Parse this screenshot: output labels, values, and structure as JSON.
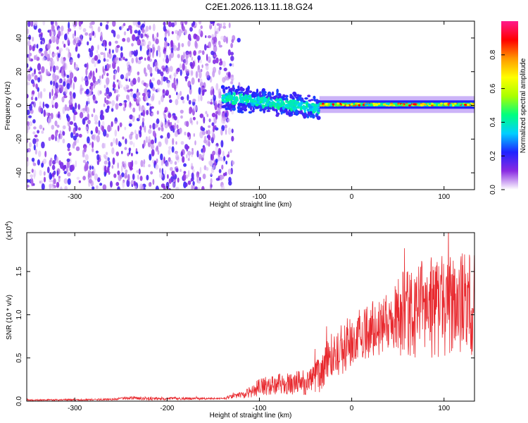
{
  "title": "C2E1.2026.113.11.18.G24",
  "chart_data": [
    {
      "type": "heatmap",
      "xlabel": "Height of straight line (km)",
      "ylabel": "Frequency (Hz)",
      "xlim": [
        -352,
        133
      ],
      "ylim": [
        -50,
        50
      ],
      "xticks": [
        -300,
        -200,
        -100,
        0,
        100
      ],
      "xtick_labels": [
        "-300",
        "-200",
        "-100",
        "0",
        "100"
      ],
      "yticks": [
        -40,
        -20,
        0,
        20,
        40
      ],
      "ytick_labels": [
        "-40",
        "-20",
        "0",
        "20",
        "40"
      ],
      "colorbar": {
        "label": "Normalized spectral amplitude",
        "range": [
          0.0,
          1.0
        ],
        "ticks": [
          0.0,
          0.2,
          0.4,
          0.6,
          0.8
        ],
        "tick_labels": [
          "0.0",
          "0.2",
          "0.4",
          "0.6",
          "0.8"
        ],
        "colors": [
          "#ffffff",
          "#8a2be2",
          "#1f22ff",
          "#00cfff",
          "#00ff7f",
          "#aaff00",
          "#ffff00",
          "#ff9900",
          "#ff0000",
          "#ff1a8c"
        ]
      },
      "regions": [
        {
          "name": "noise",
          "x": [
            -352,
            -128
          ],
          "freq": [
            -50,
            50
          ],
          "amplitude": [
            0.05,
            0.2
          ]
        },
        {
          "name": "transition",
          "x": [
            -140,
            -35
          ],
          "freq_center_start": 5,
          "freq_center_end": -2,
          "half_width": 8,
          "amplitude": [
            0.2,
            0.5
          ]
        },
        {
          "name": "carrier",
          "x": [
            -35,
            133
          ],
          "freq_center": 0.5,
          "half_width": 2.5,
          "amplitude": [
            0.3,
            0.95
          ]
        }
      ]
    },
    {
      "type": "line",
      "xlabel": "Height of straight line (km)",
      "ylabel": "SNR (10 * v/v)",
      "yscale_label": "(x10",
      "yscale_exp": "4",
      "yscale_close": ")",
      "xlim": [
        -352,
        133
      ],
      "ylim": [
        0,
        1.95
      ],
      "xticks": [
        -300,
        -200,
        -100,
        0,
        100
      ],
      "xtick_labels": [
        "-300",
        "-200",
        "-100",
        "0",
        "100"
      ],
      "yticks": [
        0.0,
        0.5,
        1.0,
        1.5
      ],
      "ytick_labels": [
        "0.0",
        "0.5",
        "1.0",
        "1.5"
      ],
      "color": "#e8292e",
      "envelope": {
        "x": [
          -352,
          -260,
          -240,
          -225,
          -140,
          -115,
          -100,
          -80,
          -50,
          -35,
          -25,
          -10,
          0,
          15,
          30,
          45,
          55,
          70,
          90,
          110,
          125,
          133
        ],
        "mean": [
          0.01,
          0.02,
          0.04,
          0.03,
          0.03,
          0.08,
          0.16,
          0.2,
          0.22,
          0.3,
          0.5,
          0.6,
          0.72,
          0.8,
          0.88,
          0.95,
          1.0,
          1.05,
          1.1,
          1.1,
          1.15,
          1.1
        ],
        "spread": [
          0.01,
          0.01,
          0.02,
          0.02,
          0.01,
          0.05,
          0.1,
          0.12,
          0.15,
          0.2,
          0.25,
          0.3,
          0.3,
          0.32,
          0.35,
          0.4,
          0.5,
          0.55,
          0.6,
          0.6,
          0.6,
          0.65
        ]
      }
    }
  ]
}
